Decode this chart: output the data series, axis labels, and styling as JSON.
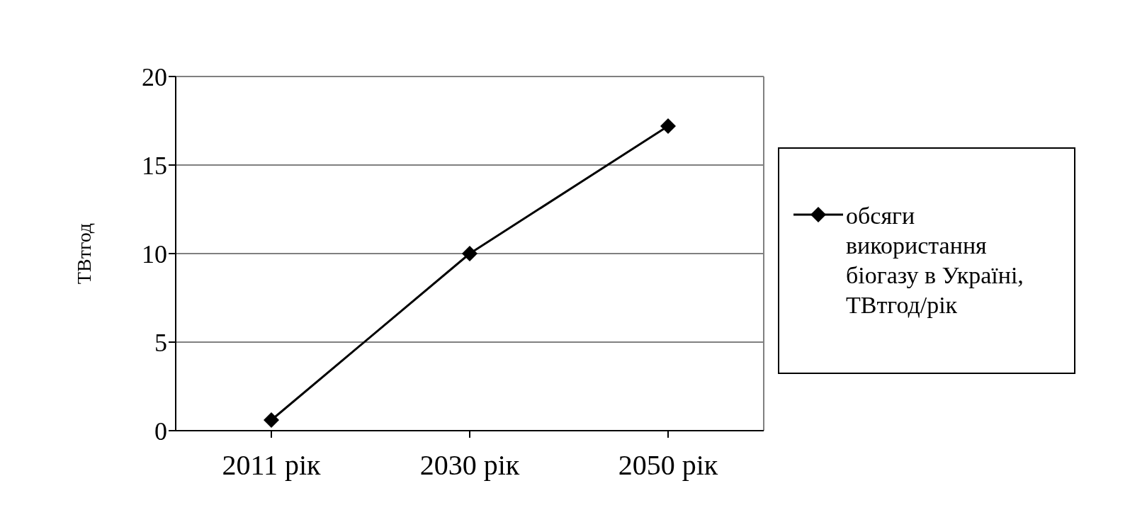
{
  "chart_data": {
    "type": "line",
    "ylabel": "ТВтгод",
    "categories": [
      "2011 рік",
      "2030 рік",
      "2050 рік"
    ],
    "series": [
      {
        "name": "обсяги використання біогазу в Україні, ТВтгод/рік",
        "color": "#000000",
        "values": [
          0.6,
          10,
          17.2
        ]
      }
    ],
    "ylim": [
      0,
      20
    ],
    "yticks": [
      0,
      5,
      10,
      15,
      20
    ],
    "grid": "y",
    "legend": "right",
    "marker": "diamond",
    "line_style": "solid"
  }
}
